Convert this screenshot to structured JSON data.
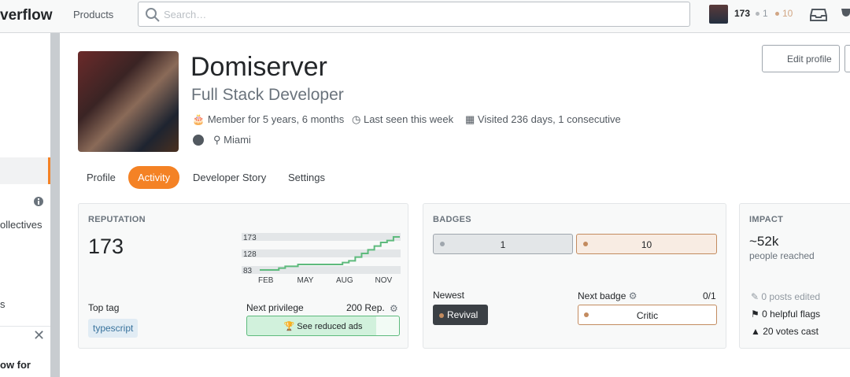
{
  "topbar": {
    "logo": "verflow",
    "nav": "Products",
    "search_placeholder": "Search…",
    "rep": "173",
    "silver": "1",
    "bronze": "10"
  },
  "sidebar": {
    "items": [
      "ollectives",
      "s"
    ],
    "promo": "ow for"
  },
  "profile": {
    "name": "Domiserver",
    "title": "Full Stack Developer",
    "member": "Member for 5 years, 6 months",
    "last_seen": "Last seen this week",
    "visited": "Visited 236 days, 1 consecutive",
    "location": "Miami",
    "edit": "Edit profile"
  },
  "tabs": [
    "Profile",
    "Activity",
    "Developer Story",
    "Settings"
  ],
  "reputation": {
    "heading": "REPUTATION",
    "value": "173",
    "chart": {
      "ylim": [
        83,
        173
      ],
      "yticks": [
        173,
        128,
        83
      ],
      "xlabels": [
        "FEB",
        "MAY",
        "AUG",
        "NOV"
      ],
      "values": [
        83,
        83,
        83,
        88,
        93,
        93,
        98,
        98,
        98,
        98,
        98,
        98,
        98,
        103,
        108,
        118,
        128,
        138,
        148,
        158,
        163,
        173,
        173
      ]
    },
    "top_tag_label": "Top tag",
    "top_tag": "typescript",
    "next_privilege": "Next privilege",
    "privilege_rep": "200 Rep.",
    "privilege": "See reduced ads"
  },
  "badges": {
    "heading": "BADGES",
    "silver": "1",
    "bronze": "10",
    "newest_label": "Newest",
    "newest": "Revival",
    "next_label": "Next badge",
    "next_progress": "0/1",
    "next": "Critic"
  },
  "impact": {
    "heading": "IMPACT",
    "reach": "~52k",
    "reach_label": "people reached",
    "posts_edited": "0 posts edited",
    "helpful_flags": "0 helpful flags",
    "votes_cast": "20 votes cast"
  }
}
